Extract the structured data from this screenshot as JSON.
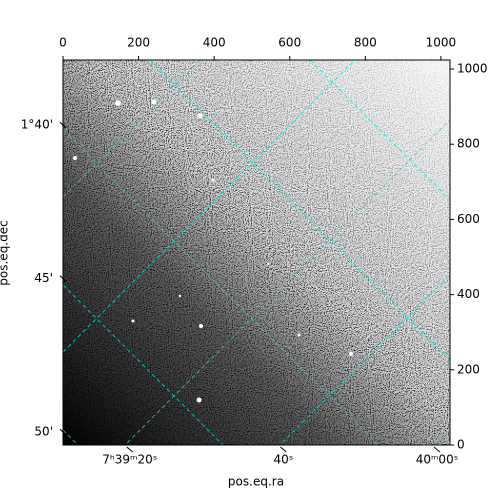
{
  "chart_data": {
    "type": "image",
    "xlabel": "pos.eq.ra",
    "ylabel": "pos.eq.dec",
    "xlim": [
      0,
      1024
    ],
    "xticks": [
      0,
      200,
      400,
      600,
      800,
      1000
    ],
    "ylim": [
      0,
      1024
    ],
    "yticks": [
      0,
      200,
      400,
      600,
      800,
      1000
    ],
    "x2lim": [
      11.3,
      61.7
    ],
    "x2ticks": [
      {
        "value": 20,
        "label": "7ʰ39ᵐ20ˢ"
      },
      {
        "value": 40,
        "label": "40ˢ"
      },
      {
        "value": 60,
        "label": "40ᵐ00ˢ"
      }
    ],
    "y2lim": [
      50.42,
      37.88
    ],
    "y2ticks": [
      {
        "value": 40,
        "label": "1°40'"
      },
      {
        "value": 45,
        "label": "45'"
      },
      {
        "value": 50,
        "label": "50'"
      }
    ],
    "grid": true
  }
}
